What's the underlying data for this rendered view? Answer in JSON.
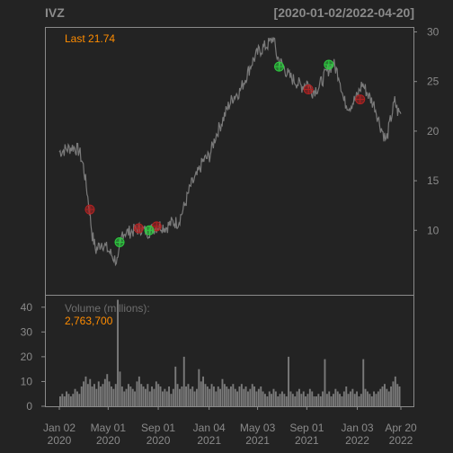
{
  "header": {
    "symbol": "IVZ",
    "date_range": "[2020-01-02/2022-04-20]"
  },
  "price_panel": {
    "last_label": "Last 21.74",
    "y_ticks": [
      "30",
      "25",
      "20",
      "15",
      "10"
    ]
  },
  "volume_panel": {
    "label": "Volume (millions):",
    "last_volume": "2,763,700",
    "y_ticks": [
      "40",
      "30",
      "20",
      "10",
      "0"
    ]
  },
  "x_axis": {
    "ticks": [
      {
        "month": "Jan 02",
        "year": "2020"
      },
      {
        "month": "May 01",
        "year": "2020"
      },
      {
        "month": "Sep 01",
        "year": "2020"
      },
      {
        "month": "Jan 04",
        "year": "2021"
      },
      {
        "month": "May 03",
        "year": "2021"
      },
      {
        "month": "Sep 01",
        "year": "2021"
      },
      {
        "month": "Jan 03",
        "year": "2022"
      },
      {
        "month": "Apr 20",
        "year": "2022"
      }
    ]
  },
  "colors": {
    "background": "#232323",
    "frame": "#8a8a8a",
    "price_line": "#7a7a7a",
    "volume_bars": "#7a7a7a",
    "buy_marker": "#2ecc40",
    "sell_marker": "#b22222",
    "accent": "#ff8c00"
  },
  "chart_data": {
    "type": "line",
    "title": "IVZ",
    "subtitle": "[2020-01-02/2022-04-20]",
    "x_type": "date",
    "price": {
      "ylim": [
        3.5,
        30.5
      ],
      "series": [
        {
          "points": [
            [
              "2020-01-02",
              17.9
            ],
            [
              "2020-01-20",
              18.2
            ],
            [
              "2020-02-05",
              18.4
            ],
            [
              "2020-02-20",
              18.0
            ],
            [
              "2020-03-01",
              16.5
            ],
            [
              "2020-03-10",
              14.0
            ],
            [
              "2020-03-16",
              12.0
            ],
            [
              "2020-03-23",
              9.5
            ],
            [
              "2020-04-01",
              8.0
            ],
            [
              "2020-04-15",
              8.8
            ],
            [
              "2020-05-01",
              8.0
            ],
            [
              "2020-05-15",
              7.2
            ],
            [
              "2020-05-25",
              6.8
            ],
            [
              "2020-06-05",
              9.8
            ],
            [
              "2020-06-20",
              9.8
            ],
            [
              "2020-07-05",
              10.0
            ],
            [
              "2020-07-20",
              10.2
            ],
            [
              "2020-08-05",
              9.8
            ],
            [
              "2020-08-20",
              10.2
            ],
            [
              "2020-09-05",
              10.5
            ],
            [
              "2020-09-20",
              10.3
            ],
            [
              "2020-10-05",
              10.8
            ],
            [
              "2020-10-20",
              10.8
            ],
            [
              "2020-11-05",
              12.5
            ],
            [
              "2020-11-20",
              14.5
            ],
            [
              "2020-12-05",
              15.5
            ],
            [
              "2020-12-20",
              17.0
            ],
            [
              "2021-01-05",
              17.5
            ],
            [
              "2021-01-20",
              19.5
            ],
            [
              "2021-02-05",
              21.0
            ],
            [
              "2021-02-20",
              22.5
            ],
            [
              "2021-03-05",
              23.5
            ],
            [
              "2021-03-20",
              24.0
            ],
            [
              "2021-04-05",
              25.5
            ],
            [
              "2021-04-20",
              27.0
            ],
            [
              "2021-05-05",
              28.0
            ],
            [
              "2021-05-20",
              28.5
            ],
            [
              "2021-06-05",
              29.0
            ],
            [
              "2021-06-10",
              29.5
            ],
            [
              "2021-06-20",
              27.5
            ],
            [
              "2021-07-05",
              26.5
            ],
            [
              "2021-07-20",
              25.5
            ],
            [
              "2021-08-05",
              25.0
            ],
            [
              "2021-08-20",
              24.5
            ],
            [
              "2021-09-01",
              25.0
            ],
            [
              "2021-09-15",
              24.0
            ],
            [
              "2021-10-01",
              24.5
            ],
            [
              "2021-10-20",
              26.0
            ],
            [
              "2021-11-05",
              26.8
            ],
            [
              "2021-11-20",
              25.5
            ],
            [
              "2021-12-01",
              23.0
            ],
            [
              "2021-12-15",
              22.5
            ],
            [
              "2022-01-03",
              23.5
            ],
            [
              "2022-01-15",
              24.8
            ],
            [
              "2022-02-01",
              23.5
            ],
            [
              "2022-02-15",
              22.5
            ],
            [
              "2022-03-01",
              20.5
            ],
            [
              "2022-03-15",
              19.0
            ],
            [
              "2022-03-25",
              21.0
            ],
            [
              "2022-04-05",
              23.0
            ],
            [
              "2022-04-12",
              22.0
            ],
            [
              "2022-04-20",
              21.74
            ]
          ]
        }
      ],
      "buy_markers": [
        [
          "2020-05-29",
          8.8
        ],
        [
          "2020-08-10",
          10.0
        ],
        [
          "2021-06-25",
          26.5
        ],
        [
          "2021-10-25",
          26.7
        ]
      ],
      "sell_markers": [
        [
          "2020-03-17",
          12.1
        ],
        [
          "2020-07-15",
          10.2
        ],
        [
          "2020-08-28",
          10.4
        ],
        [
          "2021-09-05",
          24.2
        ],
        [
          "2022-01-10",
          23.2
        ]
      ]
    },
    "volume": {
      "ylim": [
        0,
        45
      ],
      "values": [
        4,
        5,
        4,
        6,
        5,
        4,
        5,
        7,
        6,
        5,
        8,
        10,
        12,
        9,
        11,
        8,
        9,
        7,
        10,
        8,
        9,
        11,
        13,
        10,
        8,
        7,
        9,
        43,
        14,
        8,
        6,
        7,
        9,
        8,
        7,
        6,
        10,
        12,
        9,
        8,
        7,
        9,
        6,
        8,
        7,
        10,
        9,
        8,
        6,
        7,
        6,
        8,
        5,
        7,
        16,
        9,
        7,
        8,
        20,
        8,
        9,
        7,
        8,
        6,
        7,
        15,
        10,
        12,
        9,
        8,
        7,
        9,
        8,
        6,
        8,
        7,
        11,
        9,
        8,
        7,
        8,
        9,
        7,
        6,
        8,
        9,
        7,
        8,
        6,
        7,
        9,
        8,
        6,
        7,
        8,
        6,
        5,
        4,
        6,
        5,
        7,
        6,
        4,
        5,
        6,
        5,
        4,
        20,
        6,
        5,
        4,
        6,
        7,
        5,
        6,
        4,
        5,
        7,
        6,
        4,
        4,
        5,
        4,
        6,
        19,
        5,
        6,
        4,
        5,
        7,
        6,
        5,
        4,
        6,
        8,
        5,
        6,
        7,
        5,
        6,
        4,
        5,
        19,
        7,
        6,
        5,
        4,
        6,
        5,
        6,
        7,
        8,
        9,
        7,
        6,
        8,
        10,
        12,
        9,
        8
      ]
    }
  }
}
